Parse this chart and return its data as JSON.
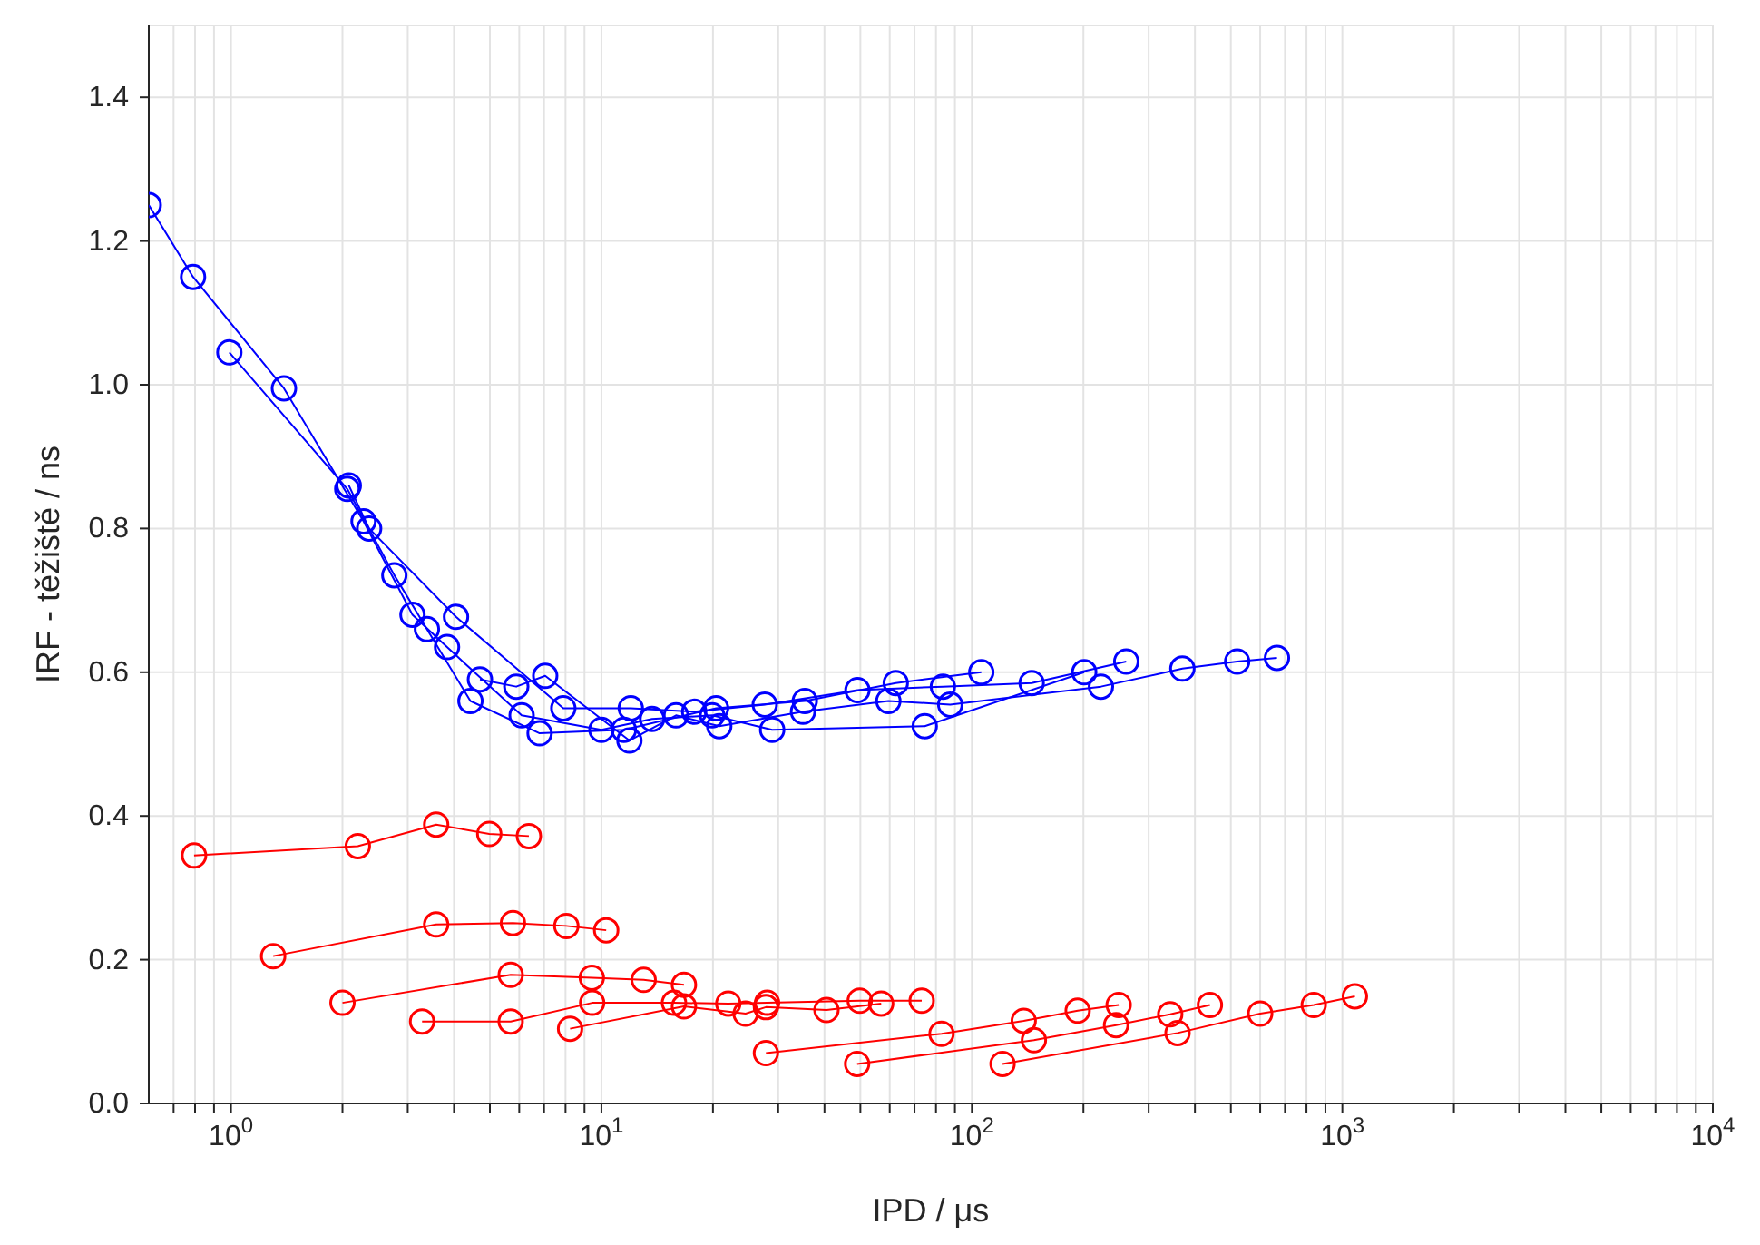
{
  "chart_data": {
    "type": "line",
    "xlabel": "IPD / μs",
    "ylabel": "IRF - těžiště / ns",
    "log": "x",
    "grid": true,
    "legend": false,
    "marker": "circle",
    "xlim": [
      0.6,
      10000
    ],
    "ylim": [
      0,
      1.5
    ],
    "xticks": [
      {
        "value": 0.7,
        "label": null
      },
      {
        "value": 0.8,
        "label": null
      },
      {
        "value": 0.9,
        "label": null
      },
      {
        "value": 1,
        "label": "10$^{0}$"
      },
      {
        "value": 2,
        "label": null
      },
      {
        "value": 3,
        "label": null
      },
      {
        "value": 4,
        "label": null
      },
      {
        "value": 5,
        "label": null
      },
      {
        "value": 6,
        "label": null
      },
      {
        "value": 7,
        "label": null
      },
      {
        "value": 8,
        "label": null
      },
      {
        "value": 9,
        "label": null
      },
      {
        "value": 10,
        "label": "10$^{1}$"
      },
      {
        "value": 20,
        "label": null
      },
      {
        "value": 30,
        "label": null
      },
      {
        "value": 40,
        "label": null
      },
      {
        "value": 50,
        "label": null
      },
      {
        "value": 60,
        "label": null
      },
      {
        "value": 70,
        "label": null
      },
      {
        "value": 80,
        "label": null
      },
      {
        "value": 90,
        "label": null
      },
      {
        "value": 100,
        "label": "10$^{2}$"
      },
      {
        "value": 200,
        "label": null
      },
      {
        "value": 300,
        "label": null
      },
      {
        "value": 400,
        "label": null
      },
      {
        "value": 500,
        "label": null
      },
      {
        "value": 600,
        "label": null
      },
      {
        "value": 700,
        "label": null
      },
      {
        "value": 800,
        "label": null
      },
      {
        "value": 900,
        "label": null
      },
      {
        "value": 1000,
        "label": "10$^{3}$"
      },
      {
        "value": 2000,
        "label": null
      },
      {
        "value": 3000,
        "label": null
      },
      {
        "value": 4000,
        "label": null
      },
      {
        "value": 5000,
        "label": null
      },
      {
        "value": 6000,
        "label": null
      },
      {
        "value": 7000,
        "label": null
      },
      {
        "value": 8000,
        "label": null
      },
      {
        "value": 9000,
        "label": null
      },
      {
        "value": 10000,
        "label": "10$^{4}$"
      }
    ],
    "yticks": [
      {
        "value": 0,
        "label": "0.0"
      },
      {
        "value": 0.2,
        "label": "0.2"
      },
      {
        "value": 0.4,
        "label": "0.4"
      },
      {
        "value": 0.6,
        "label": "0.6"
      },
      {
        "value": 0.8,
        "label": "0.8"
      },
      {
        "value": 1,
        "label": "1.0"
      },
      {
        "value": 1.2,
        "label": "1.2"
      },
      {
        "value": 1.4,
        "label": "1.4"
      }
    ],
    "series": [
      {
        "color": "#0000ff",
        "x": [
          0.6,
          0.79,
          1.39,
          2.28,
          3.09,
          3.83,
          6.09,
          10,
          13.7,
          19.9,
          28.9,
          74.6,
          201
        ],
        "values": [
          1.25,
          1.15,
          0.995,
          0.81,
          0.68,
          0.635,
          0.54,
          0.52,
          0.535,
          0.54,
          0.52,
          0.525,
          0.6
        ]
      },
      {
        "color": "#0000ff",
        "x": [
          0.99,
          2.06,
          2.76,
          3.38,
          4.43,
          6.81,
          11.5,
          20.4,
          35.4,
          62.3,
          106
        ],
        "values": [
          1.045,
          0.855,
          0.735,
          0.66,
          0.56,
          0.515,
          0.52,
          0.55,
          0.56,
          0.585,
          0.6
        ]
      },
      {
        "color": "#0000ff",
        "x": [
          2.08,
          2.36,
          4.05,
          7.89,
          12,
          17.8,
          27.6,
          49.1,
          83.5,
          145,
          261
        ],
        "values": [
          0.86,
          0.8,
          0.677,
          0.55,
          0.55,
          0.545,
          0.555,
          0.575,
          0.58,
          0.585,
          0.615
        ]
      },
      {
        "color": "#0000ff",
        "x": [
          4.7,
          5.89,
          7.05,
          11.9,
          15.9,
          20.8,
          35,
          59.5,
          87.4,
          223,
          370,
          520,
          666
        ],
        "values": [
          0.59,
          0.58,
          0.595,
          0.505,
          0.54,
          0.525,
          0.545,
          0.56,
          0.555,
          0.58,
          0.605,
          0.615,
          0.62
        ]
      },
      {
        "color": "#ff0000",
        "x": [
          0.795,
          2.2,
          3.58,
          4.98,
          6.37
        ],
        "values": [
          0.345,
          0.358,
          0.388,
          0.375,
          0.372
        ]
      },
      {
        "color": "#ff0000",
        "x": [
          1.3,
          3.58,
          5.77,
          8.04,
          10.3
        ],
        "values": [
          0.205,
          0.249,
          0.251,
          0.247,
          0.241
        ]
      },
      {
        "color": "#ff0000",
        "x": [
          2,
          5.69,
          9.42,
          13,
          16.7
        ],
        "values": [
          0.14,
          0.179,
          0.175,
          0.172,
          0.165
        ]
      },
      {
        "color": "#ff0000",
        "x": [
          3.28,
          5.69,
          9.44,
          15.7,
          22,
          28,
          49.8,
          73.2
        ],
        "values": [
          0.114,
          0.114,
          0.14,
          0.14,
          0.139,
          0.14,
          0.143,
          0.143
        ]
      },
      {
        "color": "#ff0000",
        "x": [
          8.23,
          16.7,
          24.5,
          27.8,
          40.5,
          56.9
        ],
        "values": [
          0.104,
          0.135,
          0.125,
          0.134,
          0.13,
          0.139
        ]
      },
      {
        "color": "#ff0000",
        "x": [
          27.8,
          82.8,
          138,
          193,
          249
        ],
        "values": [
          0.07,
          0.097,
          0.115,
          0.129,
          0.137
        ]
      },
      {
        "color": "#ff0000",
        "x": [
          49,
          147,
          245,
          343,
          439
        ],
        "values": [
          0.055,
          0.088,
          0.109,
          0.124,
          0.137
        ]
      },
      {
        "color": "#ff0000",
        "x": [
          121,
          359,
          600,
          837,
          1081
        ],
        "values": [
          0.055,
          0.098,
          0.125,
          0.137,
          0.149
        ]
      }
    ]
  }
}
